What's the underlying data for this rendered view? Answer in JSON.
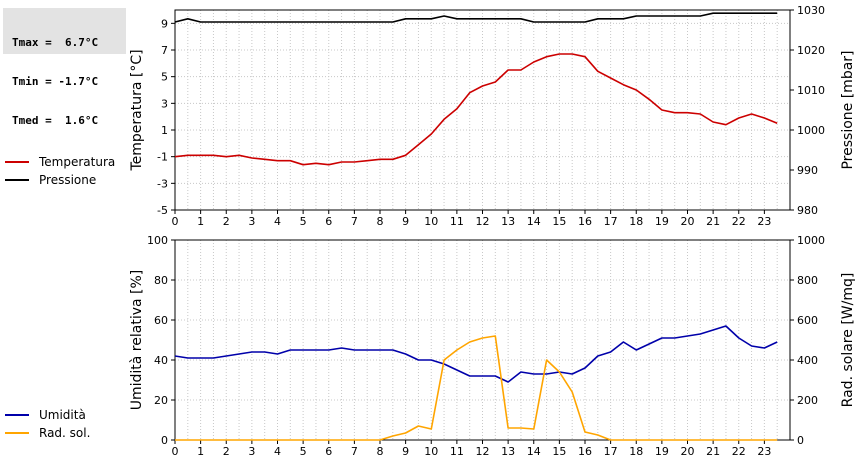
{
  "stats": {
    "tmax": "Tmax =  6.7°C",
    "tmin": "Tmin = -1.7°C",
    "tmed": "Tmed =  1.6°C"
  },
  "legend_top": [
    {
      "label": "Temperatura",
      "color": "#cc0000"
    },
    {
      "label": "Pressione",
      "color": "#000000"
    }
  ],
  "legend_bottom": [
    {
      "label": "Umidità",
      "color": "#0000aa"
    },
    {
      "label": "Rad. sol.",
      "color": "#ffa500"
    }
  ],
  "chart_data": [
    {
      "type": "line",
      "xlabel": "",
      "xlim": [
        0,
        24
      ],
      "xticks": [
        "0",
        "1",
        "2",
        "3",
        "4",
        "5",
        "6",
        "7",
        "8",
        "9",
        "10",
        "11",
        "12",
        "13",
        "14",
        "15",
        "16",
        "17",
        "18",
        "19",
        "20",
        "21",
        "22",
        "23"
      ],
      "ylabel_left": "Temperatura [°C]",
      "ylim_left": [
        -5,
        10
      ],
      "yticks_left": [
        "-5",
        "-3",
        "-1",
        "1",
        "3",
        "5",
        "7",
        "9"
      ],
      "ylabel_right": "Pressione [mbar]",
      "ylim_right": [
        980,
        1030
      ],
      "yticks_right": [
        "980",
        "990",
        "1000",
        "1010",
        "1020",
        "1030"
      ],
      "grid": true,
      "series": [
        {
          "name": "Temperatura",
          "axis": "left",
          "color": "#cc0000",
          "x": [
            0,
            0.5,
            1,
            1.5,
            2,
            2.5,
            3,
            3.5,
            4,
            4.5,
            5,
            5.5,
            6,
            6.5,
            7,
            7.5,
            8,
            8.5,
            9,
            9.5,
            10,
            10.5,
            11,
            11.5,
            12,
            12.5,
            13,
            13.5,
            14,
            14.5,
            15,
            15.5,
            16,
            16.5,
            17,
            17.5,
            18,
            18.5,
            19,
            19.5,
            20,
            20.5,
            21,
            21.5,
            22,
            22.5,
            23,
            23.5
          ],
          "y": [
            -1.0,
            -0.9,
            -0.9,
            -0.9,
            -1.0,
            -0.9,
            -1.1,
            -1.2,
            -1.3,
            -1.3,
            -1.6,
            -1.5,
            -1.6,
            -1.4,
            -1.4,
            -1.3,
            -1.2,
            -1.2,
            -0.9,
            -0.1,
            0.7,
            1.8,
            2.6,
            3.8,
            4.3,
            4.6,
            5.5,
            5.5,
            6.1,
            6.5,
            6.7,
            6.7,
            6.5,
            5.4,
            4.9,
            4.4,
            4.0,
            3.3,
            2.5,
            2.3,
            2.3,
            2.2,
            1.6,
            1.4,
            1.9,
            2.2,
            1.9,
            1.5
          ]
        },
        {
          "name": "Pressione",
          "axis": "right",
          "color": "#000000",
          "x": [
            0,
            0.5,
            1,
            1.5,
            2,
            3,
            4,
            5,
            6,
            7,
            8,
            8.5,
            9,
            10,
            10.5,
            11,
            12,
            13,
            13.5,
            14,
            15,
            16,
            16.5,
            17,
            17.5,
            18,
            19,
            20,
            20.5,
            21,
            21.5,
            22,
            23,
            23.5
          ],
          "y": [
            1027,
            1027.8,
            1027,
            1027,
            1027,
            1027,
            1027,
            1027,
            1027,
            1027,
            1027,
            1027,
            1027.8,
            1027.8,
            1028.5,
            1027.8,
            1027.8,
            1027.8,
            1027.8,
            1027,
            1027,
            1027,
            1027.8,
            1027.8,
            1027.8,
            1028.5,
            1028.5,
            1028.5,
            1028.5,
            1029.2,
            1029.2,
            1029.2,
            1029.2,
            1029.2
          ]
        }
      ]
    },
    {
      "type": "line",
      "xlabel": "",
      "xlim": [
        0,
        24
      ],
      "xticks": [
        "0",
        "1",
        "2",
        "3",
        "4",
        "5",
        "6",
        "7",
        "8",
        "9",
        "10",
        "11",
        "12",
        "13",
        "14",
        "15",
        "16",
        "17",
        "18",
        "19",
        "20",
        "21",
        "22",
        "23"
      ],
      "ylabel_left": "Umidità relativa [%]",
      "ylim_left": [
        0,
        100
      ],
      "yticks_left": [
        "0",
        "20",
        "40",
        "60",
        "80",
        "100"
      ],
      "ylabel_right": "Rad. solare [W/mq]",
      "ylim_right": [
        0,
        1000
      ],
      "yticks_right": [
        "0",
        "200",
        "400",
        "600",
        "800",
        "1000"
      ],
      "grid": true,
      "series": [
        {
          "name": "Umidità",
          "axis": "left",
          "color": "#0000aa",
          "x": [
            0,
            0.5,
            1,
            1.5,
            2,
            2.5,
            3,
            3.5,
            4,
            4.5,
            5,
            5.5,
            6,
            6.5,
            7,
            7.5,
            8,
            8.5,
            9,
            9.5,
            10,
            10.5,
            11,
            11.5,
            12,
            12.5,
            13,
            13.5,
            14,
            14.5,
            15,
            15.5,
            16,
            16.5,
            17,
            17.5,
            18,
            18.5,
            19,
            19.5,
            20,
            20.5,
            21,
            21.5,
            22,
            22.5,
            23,
            23.5
          ],
          "y": [
            42,
            41,
            41,
            41,
            42,
            43,
            44,
            44,
            43,
            45,
            45,
            45,
            45,
            46,
            45,
            45,
            45,
            45,
            43,
            40,
            40,
            38,
            35,
            32,
            32,
            32,
            29,
            34,
            33,
            33,
            34,
            33,
            36,
            42,
            44,
            49,
            45,
            48,
            51,
            51,
            52,
            53,
            55,
            57,
            51,
            47,
            46,
            49
          ]
        },
        {
          "name": "Rad. sol.",
          "axis": "right",
          "color": "#ffa500",
          "x": [
            0,
            1,
            2,
            3,
            4,
            5,
            6,
            7,
            8,
            8.5,
            9,
            9.5,
            10,
            10.5,
            11,
            11.5,
            12,
            12.5,
            13,
            13.5,
            14,
            14.5,
            15,
            15.5,
            16,
            16.5,
            17,
            18,
            19,
            20,
            21,
            22,
            23,
            23.5
          ],
          "y": [
            0,
            0,
            0,
            0,
            0,
            0,
            0,
            0,
            0,
            20,
            35,
            70,
            55,
            400,
            450,
            490,
            510,
            520,
            60,
            60,
            55,
            400,
            340,
            240,
            40,
            25,
            0,
            0,
            0,
            0,
            0,
            0,
            0,
            0
          ]
        }
      ]
    }
  ]
}
